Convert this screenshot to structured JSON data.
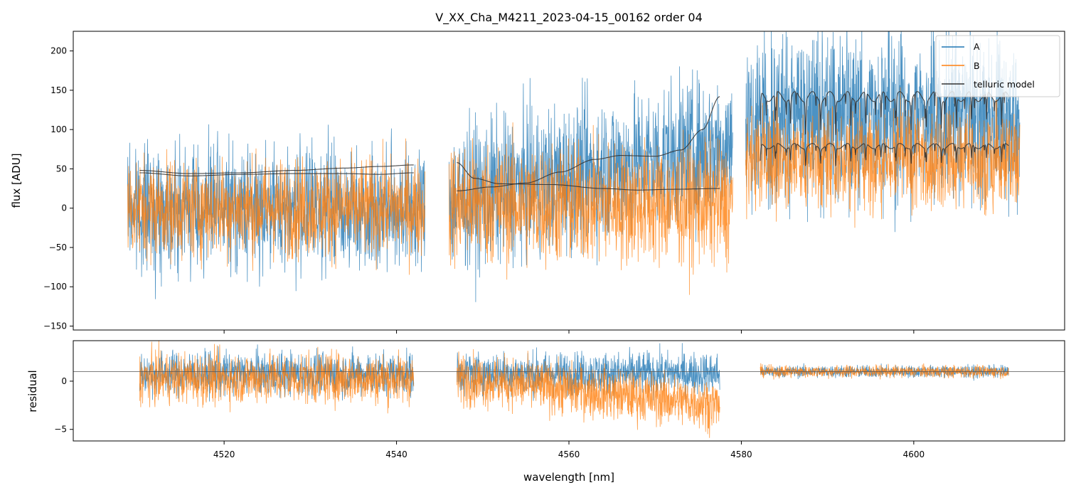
{
  "chart_data": {
    "type": "line",
    "title": "V_XX_Cha_M4211_2023-04-15_00162  order 04",
    "xlabel": "wavelength [nm]",
    "xlim": [
      4502.5,
      4617.5
    ],
    "xticks": [
      4520,
      4540,
      4560,
      4580,
      4600
    ],
    "xtick_labels": [
      "4520",
      "4540",
      "4560",
      "4580",
      "4600"
    ],
    "segments": [
      [
        4508.8,
        4543.3
      ],
      [
        4546.1,
        4579.0
      ],
      [
        4580.5,
        4612.3
      ]
    ],
    "model_segments": [
      [
        4510.2,
        4542.0
      ],
      [
        4547.0,
        4577.5
      ],
      [
        4582.2,
        4611.0
      ]
    ],
    "top_panel": {
      "ylabel": "flux [ADU]",
      "ylim": [
        -155,
        225
      ],
      "yticks": [
        -150,
        -100,
        -50,
        0,
        50,
        100,
        150,
        200
      ],
      "ytick_labels": [
        "−150",
        "−100",
        "−50",
        "0",
        "50",
        "100",
        "150",
        "200"
      ]
    },
    "bottom_panel": {
      "ylabel": "residual",
      "ylim": [
        -6.2,
        4.2
      ],
      "yticks": [
        -5,
        0
      ],
      "ytick_labels": [
        "−5",
        "0"
      ],
      "reference_line": 1
    },
    "series": [
      {
        "name": "A",
        "color": "#1f77b4"
      },
      {
        "name": "B",
        "color": "#ff7f0e"
      },
      {
        "name": "telluric model",
        "color": "#333333"
      }
    ],
    "telluric_model": {
      "A": {
        "seg1": [
          [
            4510.2,
            48
          ],
          [
            4516,
            44
          ],
          [
            4522,
            45
          ],
          [
            4528,
            48
          ],
          [
            4534,
            51
          ],
          [
            4538,
            53
          ],
          [
            4542.0,
            55
          ]
        ],
        "seg2": [
          [
            4547.0,
            22
          ],
          [
            4551,
            27
          ],
          [
            4555,
            32
          ],
          [
            4559,
            46
          ],
          [
            4563,
            62
          ],
          [
            4566,
            67
          ],
          [
            4570,
            66
          ],
          [
            4573,
            74
          ],
          [
            4575.5,
            100
          ],
          [
            4577.5,
            142
          ]
        ],
        "seg3": {
          "baseline": 142,
          "depth": 42
        }
      },
      "B": {
        "seg1": [
          [
            4510.2,
            45
          ],
          [
            4516,
            41
          ],
          [
            4522,
            43
          ],
          [
            4528,
            44
          ],
          [
            4534,
            44
          ],
          [
            4538,
            43
          ],
          [
            4542.0,
            45
          ]
        ],
        "seg2": [
          [
            4547.0,
            58
          ],
          [
            4549,
            38
          ],
          [
            4552,
            31
          ],
          [
            4558,
            30
          ],
          [
            4564,
            25
          ],
          [
            4568,
            23
          ],
          [
            4572,
            24
          ],
          [
            4577.5,
            25
          ]
        ],
        "seg3": {
          "baseline": 79,
          "depth": 22
        }
      }
    }
  }
}
